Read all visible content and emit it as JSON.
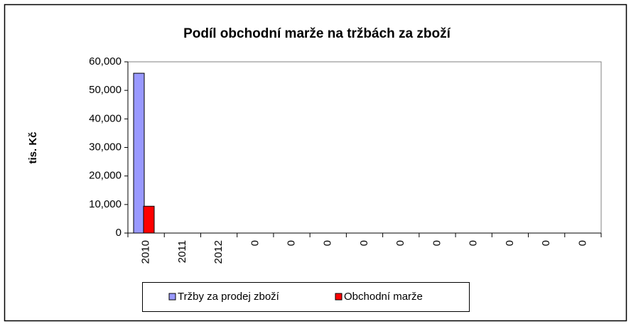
{
  "chart_data": {
    "type": "bar",
    "title": "Podíl obchodní marže na tržbách za zboží",
    "y_label": "tis. Kč",
    "categories": [
      "2010",
      "2011",
      "2012",
      "0",
      "0",
      "0",
      "0",
      "0",
      "0",
      "0",
      "0",
      "0",
      "0"
    ],
    "series": [
      {
        "name": "Tržby za prodej zboží",
        "color": "#9999ff",
        "values": [
          56000,
          0,
          0,
          0,
          0,
          0,
          0,
          0,
          0,
          0,
          0,
          0,
          0
        ]
      },
      {
        "name": "Obchodní marže",
        "color": "#ff0000",
        "values": [
          9400,
          0,
          0,
          0,
          0,
          0,
          0,
          0,
          0,
          0,
          0,
          0,
          0
        ]
      }
    ],
    "ylim": [
      0,
      60000
    ],
    "yticks": [
      0,
      {
        "value": 10000,
        "label": "10,000"
      },
      {
        "value": 20000,
        "label": "20,000"
      },
      {
        "value": 30000,
        "label": "30,000"
      },
      {
        "value": 40000,
        "label": "40,000"
      },
      {
        "value": 50000,
        "label": "50,000"
      },
      {
        "value": 60000,
        "label": "60,000"
      }
    ],
    "grid": false,
    "legend": "bottom"
  }
}
